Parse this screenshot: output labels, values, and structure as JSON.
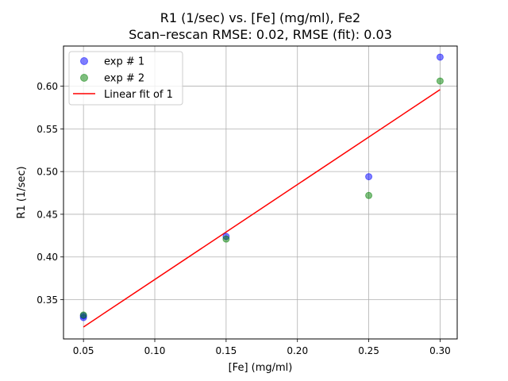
{
  "chart_data": {
    "type": "scatter",
    "title": "R1 (1/sec) vs. [Fe] (mg/ml), Fe2",
    "subtitle": "Scan–rescan RMSE: 0.02, RMSE (fit): 0.03",
    "xlabel": "[Fe] (mg/ml)",
    "ylabel": "R1 (1/sec)",
    "xlim": [
      0.036,
      0.312
    ],
    "ylim": [
      0.304,
      0.647
    ],
    "xticks": [
      0.05,
      0.1,
      0.15,
      0.2,
      0.25,
      0.3
    ],
    "xtick_labels": [
      "0.05",
      "0.10",
      "0.15",
      "0.20",
      "0.25",
      "0.30"
    ],
    "yticks": [
      0.35,
      0.4,
      0.45,
      0.5,
      0.55,
      0.6
    ],
    "ytick_labels": [
      "0.35",
      "0.40",
      "0.45",
      "0.50",
      "0.55",
      "0.60"
    ],
    "grid": true,
    "legend_position": "top-left",
    "series": [
      {
        "name": "exp # 1",
        "kind": "scatter",
        "color": "#0000ff",
        "x": [
          0.05,
          0.05,
          0.15,
          0.25,
          0.3
        ],
        "y": [
          0.329,
          0.331,
          0.424,
          0.494,
          0.634
        ]
      },
      {
        "name": "exp # 2",
        "kind": "scatter",
        "color": "#008000",
        "x": [
          0.05,
          0.15,
          0.25,
          0.3
        ],
        "y": [
          0.332,
          0.421,
          0.472,
          0.606
        ]
      },
      {
        "name": "Linear fit of 1",
        "kind": "line",
        "color": "#ff0000",
        "x": [
          0.05,
          0.3
        ],
        "y": [
          0.318,
          0.596
        ]
      }
    ]
  }
}
